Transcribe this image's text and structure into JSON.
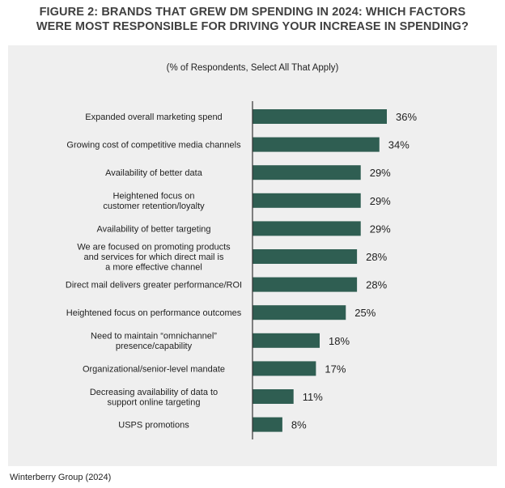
{
  "title_line1": "FIGURE 2: BRANDS THAT GREW DM SPENDING IN 2024: WHICH FACTORS",
  "title_line2": "WERE MOST RESPONSIBLE FOR DRIVING YOUR INCREASE IN SPENDING?",
  "subtitle": "(% of Respondents, Select All That Apply)",
  "source": "Winterberry Group (2024)",
  "colors": {
    "bar": "#2f5e52",
    "panel": "#efefef",
    "axis": "#333333"
  },
  "chart_data": {
    "type": "bar",
    "orientation": "horizontal",
    "title": "FIGURE 2: BRANDS THAT GREW DM SPENDING IN 2024: WHICH FACTORS WERE MOST RESPONSIBLE FOR DRIVING YOUR INCREASE IN SPENDING?",
    "subtitle": "(% of Respondents, Select All That Apply)",
    "categories": [
      [
        "Expanded overall marketing spend"
      ],
      [
        "Growing cost of competitive media channels"
      ],
      [
        "Availability of better data"
      ],
      [
        "Heightened focus on",
        "customer retention/loyalty"
      ],
      [
        "Availability of better targeting"
      ],
      [
        "We are focused on promoting products",
        "and services for which direct mail is",
        "a more effective channel"
      ],
      [
        "Direct mail delivers greater performance/ROI"
      ],
      [
        "Heightened focus on performance outcomes"
      ],
      [
        "Need to maintain “omnichannel”",
        "presence/capability"
      ],
      [
        "Organizational/senior-level mandate"
      ],
      [
        "Decreasing availability of data to",
        "support online targeting"
      ],
      [
        "USPS promotions"
      ]
    ],
    "values": [
      36,
      34,
      29,
      29,
      29,
      28,
      28,
      25,
      18,
      17,
      11,
      8
    ],
    "value_labels": [
      "36%",
      "34%",
      "29%",
      "29%",
      "29%",
      "28%",
      "28%",
      "25%",
      "18%",
      "17%",
      "11%",
      "8%"
    ],
    "xlim": [
      0,
      40
    ],
    "grid": false,
    "legend": "none"
  }
}
